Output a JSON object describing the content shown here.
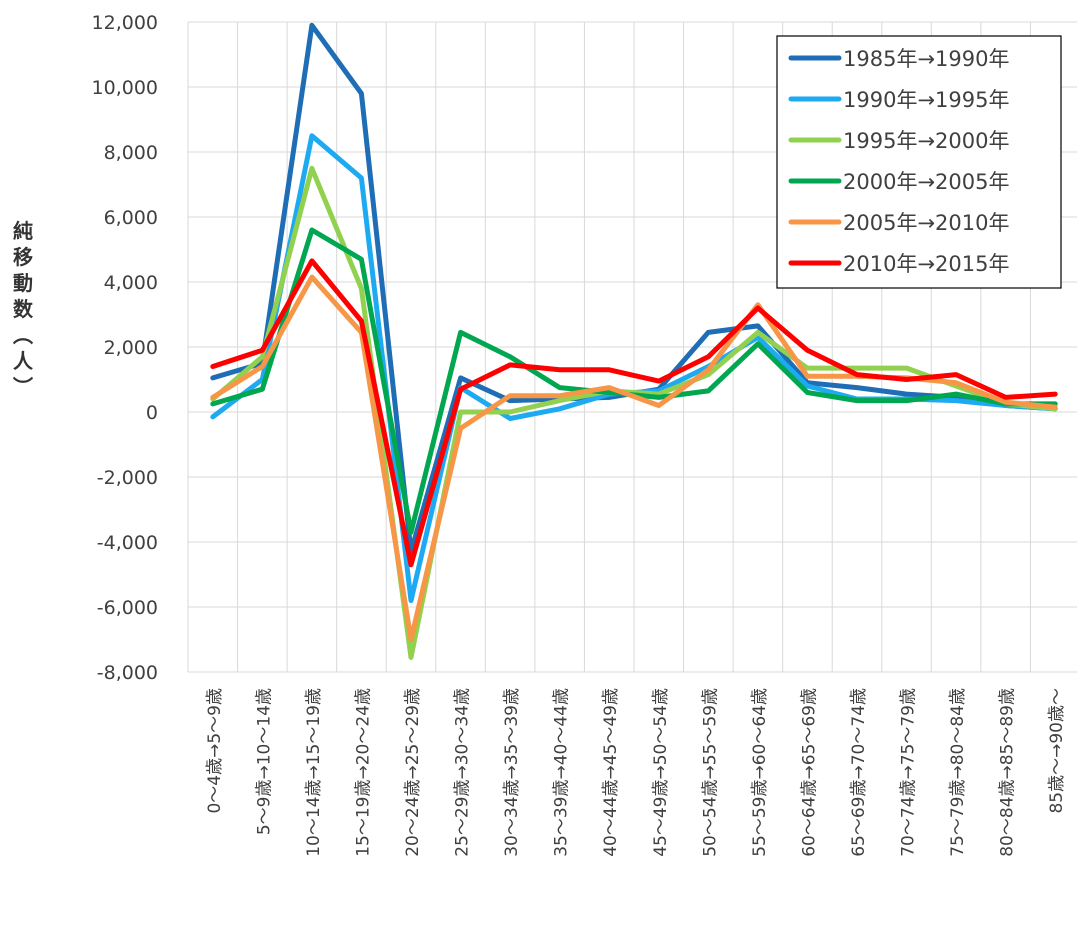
{
  "chart_data": {
    "type": "line",
    "ylabel_chars": [
      "純",
      "移",
      "動",
      "数",
      "︵",
      "人",
      "︶"
    ],
    "ylim": [
      -8000,
      12000
    ],
    "yticks": [
      12000,
      10000,
      8000,
      6000,
      4000,
      2000,
      0,
      -2000,
      -4000,
      -6000,
      -8000
    ],
    "ytick_labels": [
      "12,000",
      "10,000",
      "8,000",
      "6,000",
      "4,000",
      "2,000",
      "0",
      "-2,000",
      "-4,000",
      "-6,000",
      "-8,000"
    ],
    "grid": true,
    "legend_position": "top-right",
    "categories": [
      "0～4歳→5～9歳",
      "5～9歳→10～14歳",
      "10～14歳→15～19歳",
      "15～19歳→20～24歳",
      "20～24歳→25～29歳",
      "25～29歳→30～34歳",
      "30～34歳→35～39歳",
      "35～39歳→40～44歳",
      "40～44歳→45～49歳",
      "45～49歳→50～54歳",
      "50～54歳→55～59歳",
      "55～59歳→60～64歳",
      "60～64歳→65～69歳",
      "65～69歳→70～74歳",
      "70～74歳→75～79歳",
      "75～79歳→80～84歳",
      "80～84歳→85～89歳",
      "85歳～→90歳～"
    ],
    "series": [
      {
        "name": "1985年→1990年",
        "color": "#1f6db5",
        "values": [
          1050,
          1500,
          11900,
          9800,
          -4300,
          1050,
          350,
          400,
          450,
          700,
          2450,
          2650,
          900,
          750,
          550,
          450,
          200,
          100
        ]
      },
      {
        "name": "1990年→1995年",
        "color": "#1eaaf1",
        "values": [
          -150,
          1000,
          8500,
          7200,
          -5800,
          750,
          -200,
          100,
          550,
          650,
          1400,
          2300,
          800,
          400,
          400,
          350,
          200,
          100
        ]
      },
      {
        "name": "1995年→2000年",
        "color": "#92d050",
        "values": [
          400,
          1700,
          7500,
          3800,
          -7550,
          0,
          0,
          350,
          650,
          550,
          1150,
          2450,
          1350,
          1350,
          1350,
          800,
          250,
          100
        ]
      },
      {
        "name": "2000年→2005年",
        "color": "#00a650",
        "values": [
          250,
          700,
          5600,
          4700,
          -3700,
          2450,
          1700,
          750,
          600,
          450,
          650,
          2100,
          600,
          350,
          350,
          550,
          250,
          250
        ]
      },
      {
        "name": "2005年→2010年",
        "color": "#f79646",
        "values": [
          450,
          1400,
          4150,
          2450,
          -7000,
          -500,
          500,
          500,
          750,
          200,
          1300,
          3300,
          1100,
          1100,
          1050,
          900,
          300,
          150
        ]
      },
      {
        "name": "2010年→2015年",
        "color": "#ff0000",
        "values": [
          1400,
          1900,
          4650,
          2800,
          -4700,
          700,
          1450,
          1300,
          1300,
          950,
          1700,
          3200,
          1900,
          1150,
          1000,
          1150,
          450,
          550
        ]
      }
    ]
  }
}
